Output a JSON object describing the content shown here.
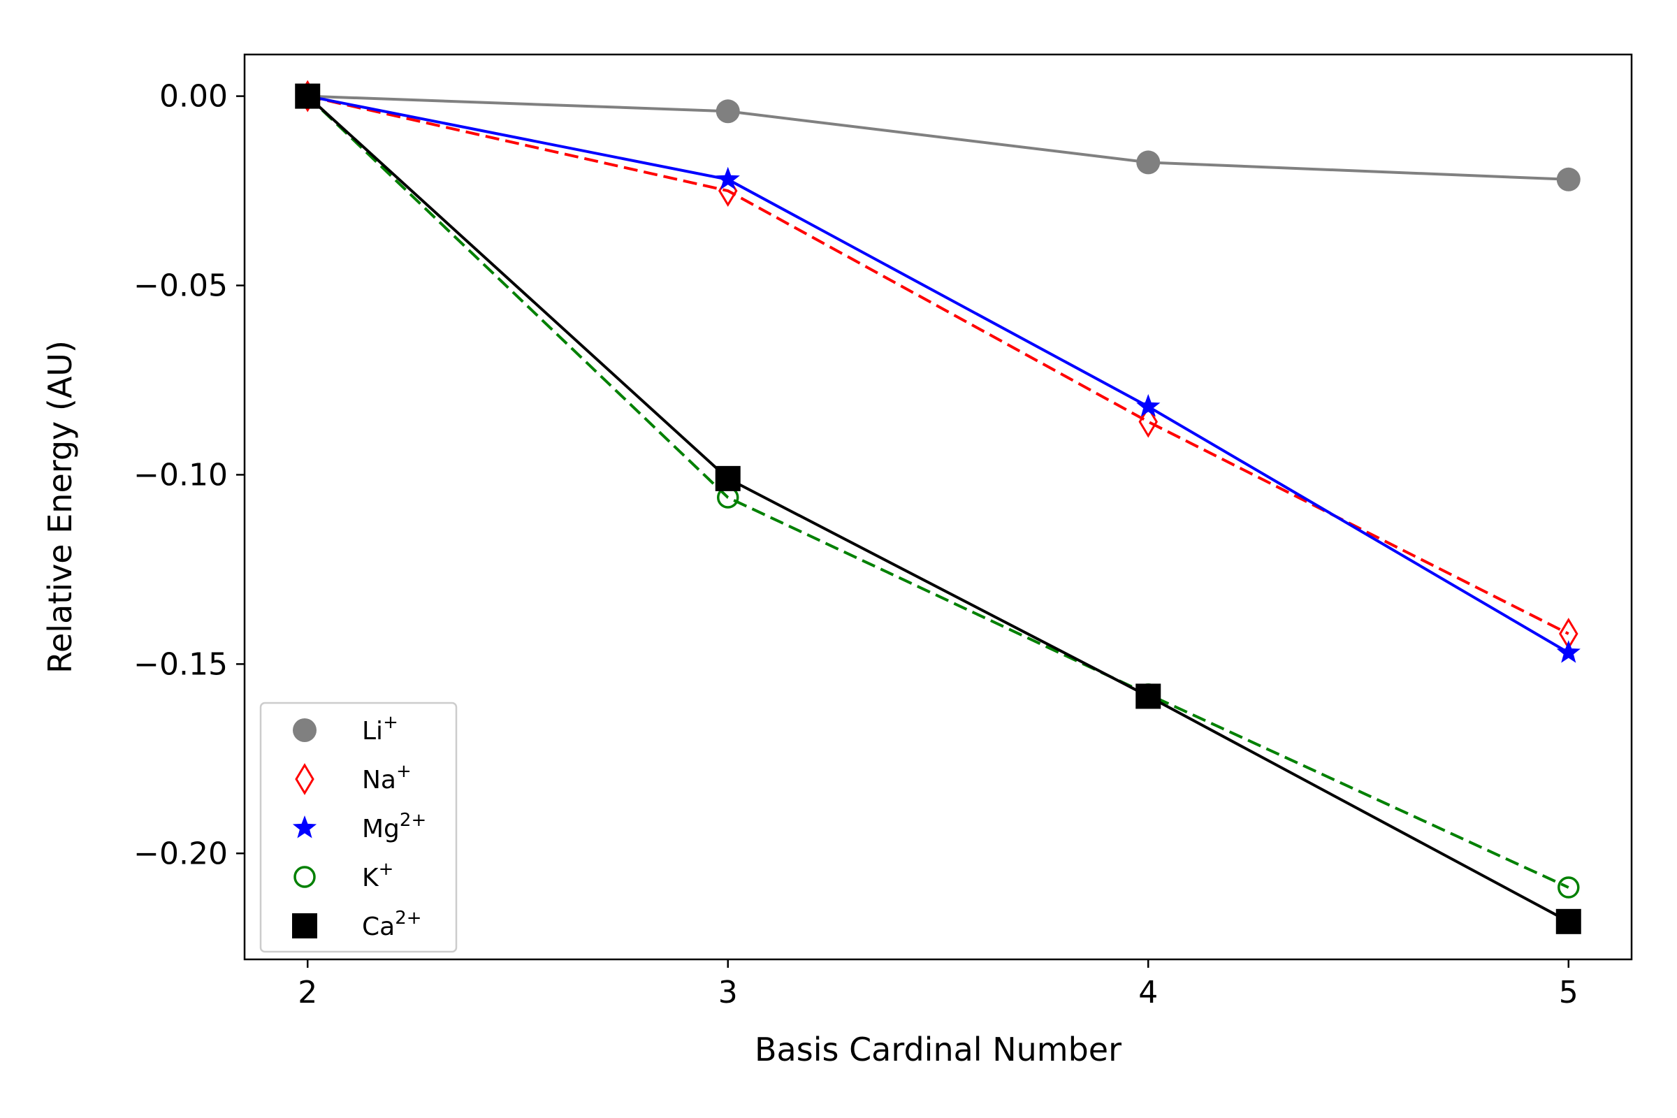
{
  "chart_data": {
    "type": "line",
    "title": "",
    "xlabel": "Basis Cardinal Number",
    "ylabel": "Relative Energy (AU)",
    "x": [
      2,
      3,
      4,
      5
    ],
    "xlim": [
      1.85,
      5.15
    ],
    "ylim": [
      -0.228,
      0.011
    ],
    "xticks": [
      2,
      3,
      4,
      5
    ],
    "xtick_labels": [
      "2",
      "3",
      "4",
      "5"
    ],
    "yticks": [
      0.0,
      -0.05,
      -0.1,
      -0.15,
      -0.2
    ],
    "ytick_labels": [
      "0.00",
      "−0.05",
      "−0.10",
      "−0.15",
      "−0.20"
    ],
    "grid": false,
    "legend_position": "lower-left",
    "series": [
      {
        "name": "Li",
        "sup": "+",
        "values": [
          0.0,
          -0.004,
          -0.0175,
          -0.022
        ],
        "color": "#808080",
        "line_style": "solid",
        "marker": "circle-filled"
      },
      {
        "name": "Na",
        "sup": "+",
        "values": [
          0.0,
          -0.025,
          -0.086,
          -0.142
        ],
        "color": "#ff0000",
        "line_style": "dashed",
        "marker": "thin-diamond-open"
      },
      {
        "name": "Mg",
        "sup": "2+",
        "values": [
          0.0,
          -0.022,
          -0.082,
          -0.147
        ],
        "color": "#0000ff",
        "line_style": "solid",
        "marker": "star-filled"
      },
      {
        "name": "K",
        "sup": "+",
        "values": [
          0.0,
          -0.106,
          -0.158,
          -0.209
        ],
        "color": "#008000",
        "line_style": "dashed",
        "marker": "circle-open"
      },
      {
        "name": "Ca",
        "sup": "2+",
        "values": [
          0.0,
          -0.101,
          -0.1585,
          -0.218
        ],
        "color": "#000000",
        "line_style": "solid",
        "marker": "square-filled"
      }
    ]
  }
}
